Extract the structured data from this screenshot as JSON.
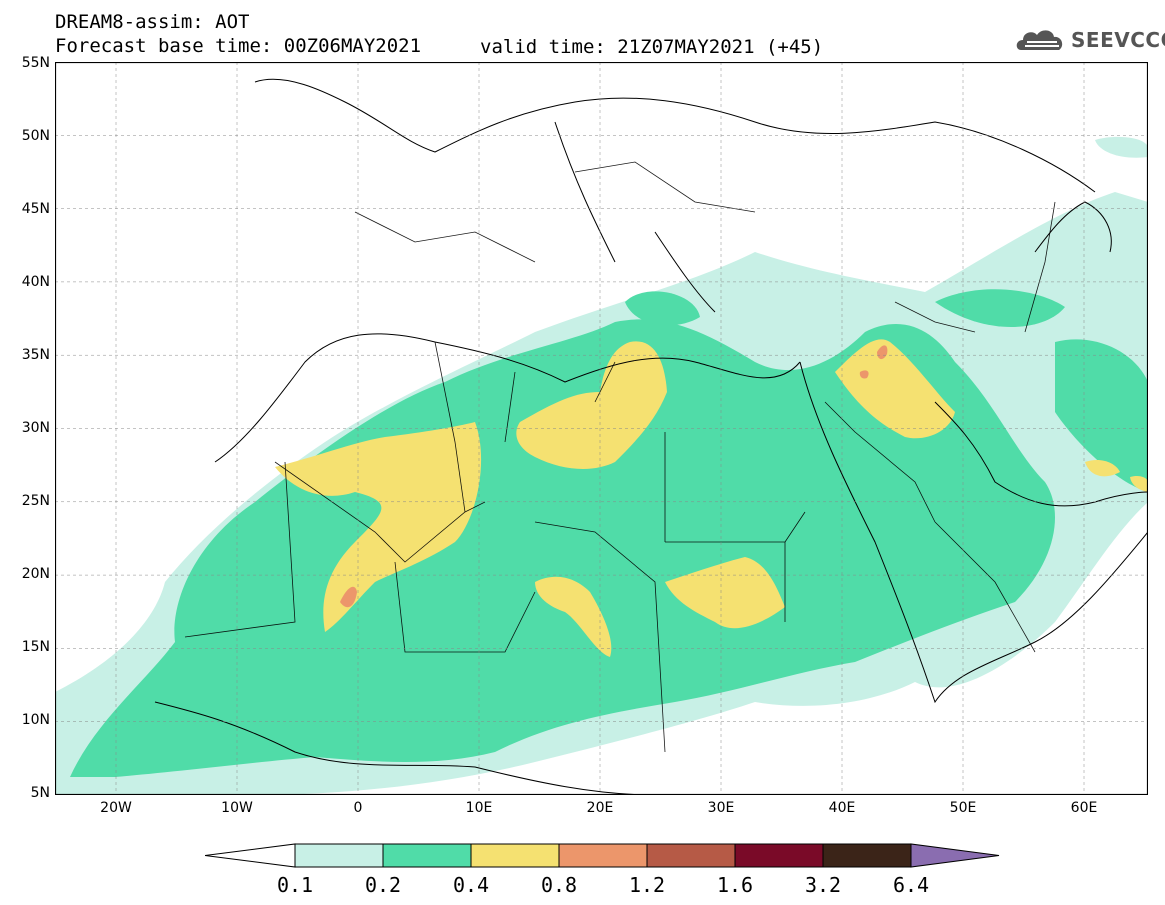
{
  "header": {
    "line1": "DREAM8-assim: AOT",
    "line2": "Forecast base time: 00Z06MAY2021",
    "valid": "valid time: 21Z07MAY2021 (+45)"
  },
  "logo": {
    "name": "cloud-logo",
    "text": "SEEVCCC"
  },
  "axes": {
    "lat_labels": [
      "55N",
      "50N",
      "45N",
      "40N",
      "35N",
      "30N",
      "25N",
      "20N",
      "15N",
      "10N",
      "5N"
    ],
    "lon_labels": [
      "20W",
      "10W",
      "0",
      "10E",
      "20E",
      "30E",
      "40E",
      "50E",
      "60E"
    ]
  },
  "colorbar": {
    "labels": [
      "0.1",
      "0.2",
      "0.4",
      "0.8",
      "1.2",
      "1.6",
      "3.2",
      "6.4"
    ],
    "colors": [
      "#ffffff",
      "#c8f0e6",
      "#50dca8",
      "#f5e171",
      "#ec966b",
      "#b65a46",
      "#7a0a28",
      "#3b2418",
      "#8a6db0"
    ]
  },
  "field": {
    "name": "aerosol-optical-thickness",
    "levels": [
      0.1,
      0.2,
      0.4,
      0.8,
      1.2
    ]
  }
}
